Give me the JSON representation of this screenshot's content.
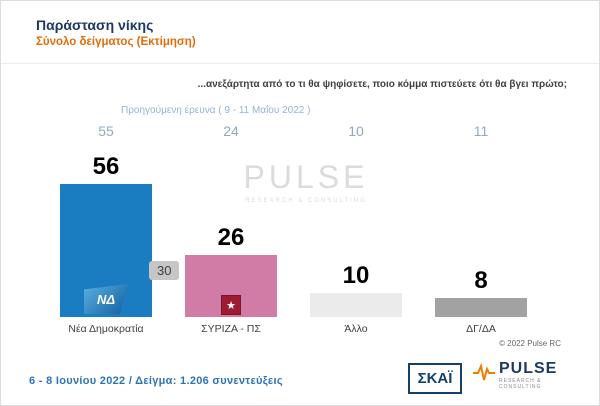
{
  "header": {
    "title": "Παράσταση νίκης",
    "subtitle": "Σύνολο δείγματος  (Εκτίμηση)"
  },
  "question": "...ανεξάρτητα από το τι θα ψηφίσετε, ποιο κόμμα πιστεύετε ότι θα βγει πρώτο;",
  "previous": {
    "label": "Προηγούμενη έρευνα ( 9 - 11 Μαΐου 2022 )"
  },
  "chart_data": {
    "type": "bar",
    "title": "Παράσταση νίκης",
    "categories": [
      "Νέα Δημοκρατία",
      "ΣΥΡΙΖΑ - ΠΣ",
      "Άλλο",
      "ΔΓ/ΔΑ"
    ],
    "values": [
      56,
      26,
      10,
      8
    ],
    "previous_values": [
      55,
      24,
      10,
      11
    ],
    "difference_label": "30",
    "colors": [
      "#1a7dc2",
      "#d07ca7",
      "#ebebeb",
      "#a2a2a2"
    ],
    "nd_logo_text": "ΝΔ",
    "syriza_star_glyph": "★",
    "ylim": [
      0,
      60
    ],
    "grid": false,
    "legend": "none"
  },
  "watermark": {
    "text": "PULSE",
    "subtext": "RESEARCH & CONSULTING"
  },
  "footer": {
    "survey_info": "6 - 8 Ιουνίου 2022 / Δείγμα: 1.206 συνεντεύξεις",
    "copyright": "© 2022 Pulse RC",
    "skai_logo_text": "ΣΚΑΪ",
    "pulse_logo_text": "PULSE",
    "pulse_logo_subtext": "RESEARCH & CONSULTING"
  }
}
